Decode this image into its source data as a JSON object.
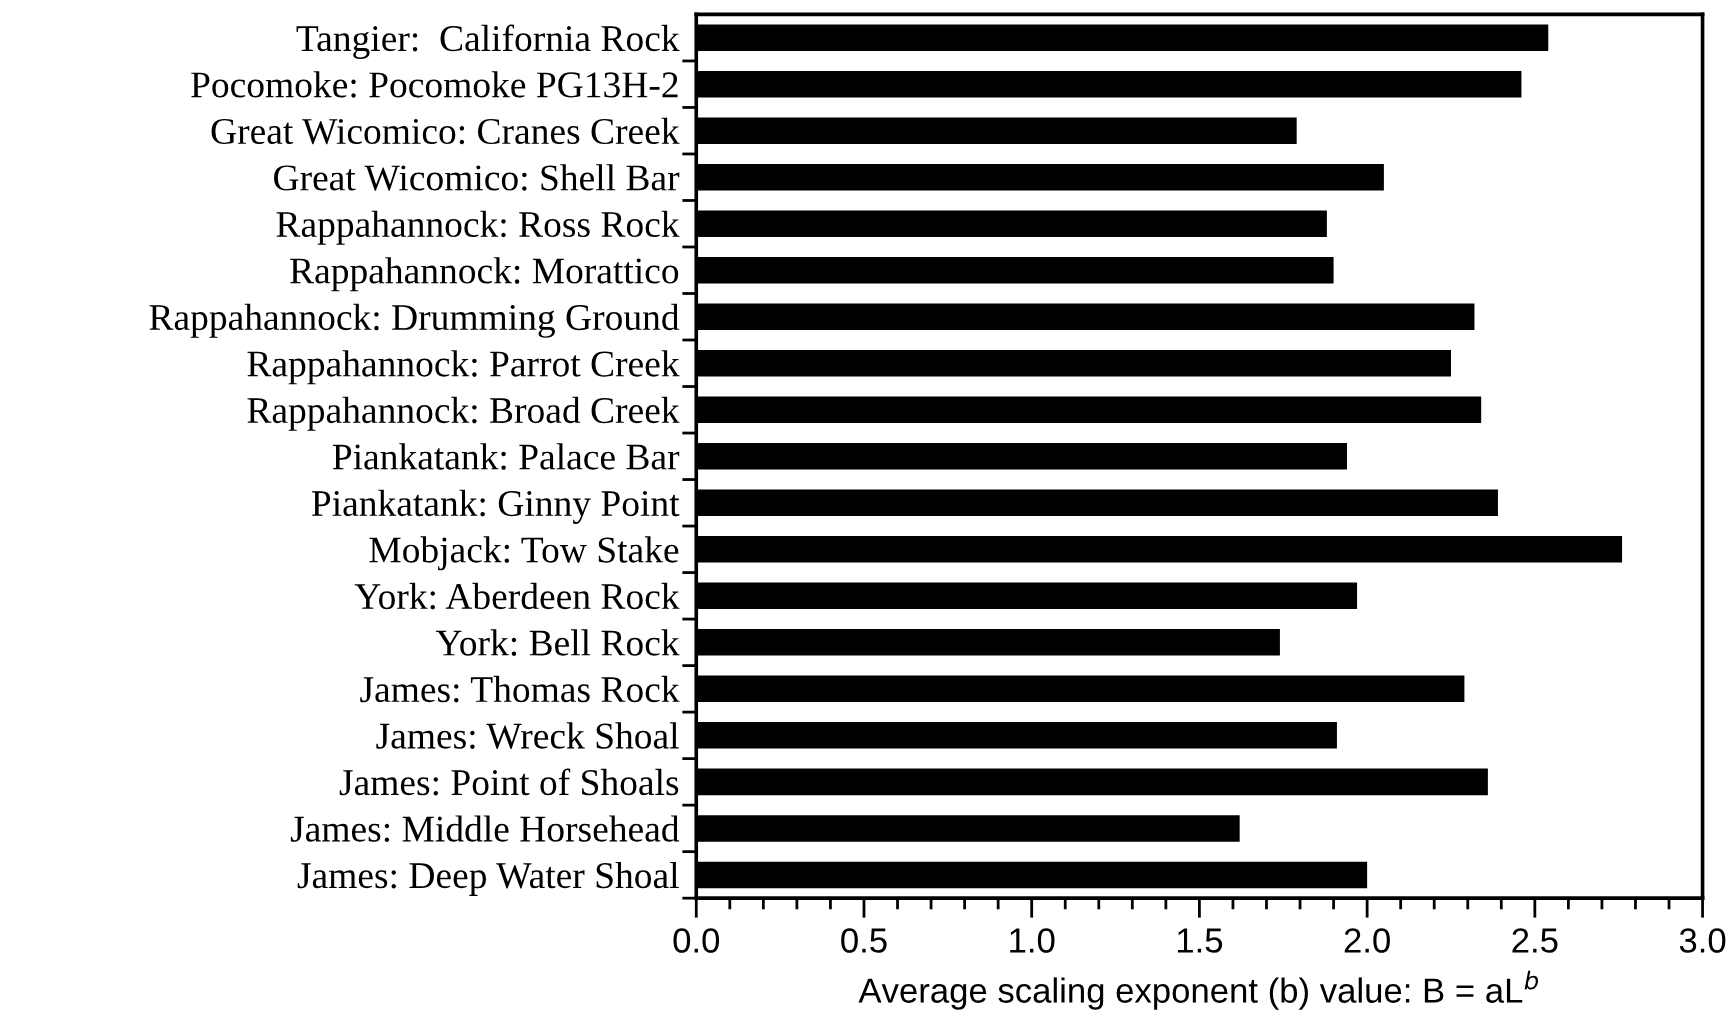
{
  "chart_data": {
    "type": "bar",
    "orientation": "horizontal",
    "xlabel": "Average scaling exponent (b) value: B = aL$^{b}$",
    "categories": [
      "Tangier:  California Rock",
      "Pocomoke: Pocomoke PG13H-2",
      "Great Wicomico: Cranes Creek",
      "Great Wicomico: Shell Bar",
      "Rappahannock: Ross Rock",
      "Rappahannock: Morattico",
      "Rappahannock: Drumming Ground",
      "Rappahannock: Parrot Creek",
      "Rappahannock: Broad Creek",
      "Piankatank: Palace Bar",
      "Piankatank: Ginny Point",
      "Mobjack: Tow Stake",
      "York: Aberdeen Rock",
      "York: Bell Rock",
      "James: Thomas Rock",
      "James: Wreck Shoal",
      "James: Point of Shoals",
      "James: Middle Horsehead",
      "James: Deep Water Shoal"
    ],
    "values": [
      2.54,
      2.46,
      1.79,
      2.05,
      1.88,
      1.9,
      2.32,
      2.25,
      2.34,
      1.94,
      2.39,
      2.76,
      1.97,
      1.74,
      2.29,
      1.91,
      2.36,
      1.62,
      2.0
    ],
    "color": "#000000",
    "xlim": [
      0.0,
      3.0
    ],
    "xticks": [
      {
        "value": 0,
        "label": "0.0"
      },
      0.5,
      {
        "value": 1,
        "label": "1.0"
      },
      1.5,
      {
        "value": 2,
        "label": "2.0"
      },
      2.5,
      {
        "value": 3,
        "label": "3.0"
      }
    ],
    "grid": false,
    "legend": false
  }
}
